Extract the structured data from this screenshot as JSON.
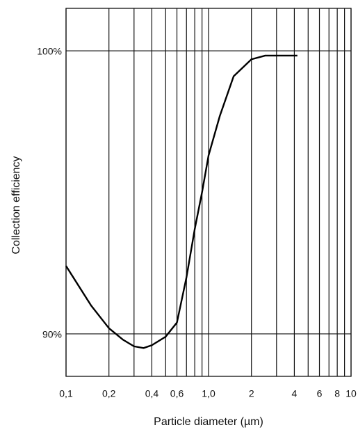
{
  "chart_data": {
    "type": "line",
    "x_label": "Particle diameter (µm)",
    "y_label": "Collection efficiency",
    "x": [
      0.1,
      0.15,
      0.2,
      0.25,
      0.3,
      0.35,
      0.4,
      0.5,
      0.6,
      0.7,
      0.8,
      0.9,
      1.0,
      1.2,
      1.5,
      2,
      2.5,
      3,
      4.2
    ],
    "values": [
      92.4,
      91.0,
      90.2,
      89.8,
      89.56,
      89.5,
      89.6,
      89.9,
      90.4,
      92.0,
      93.7,
      95.0,
      96.3,
      97.7,
      99.1,
      99.7,
      99.83,
      99.83,
      99.83
    ],
    "color": "#000000",
    "x_log": true,
    "xlim": [
      0.1,
      10
    ],
    "ylim": [
      88.5,
      101.5
    ],
    "xticks": [
      {
        "value": 0.1,
        "label": "0,1"
      },
      {
        "value": 0.2,
        "label": "0,2"
      },
      {
        "value": 0.4,
        "label": "0,4"
      },
      {
        "value": 0.6,
        "label": "0,6"
      },
      {
        "value": 1.0,
        "label": "1,0"
      },
      2,
      4,
      6,
      8,
      10
    ],
    "x_minor_ticks": [
      0.3,
      0.5,
      0.7,
      0.8,
      0.9,
      3,
      5,
      7,
      9
    ],
    "yticks": [
      {
        "value": 90,
        "label": "90%"
      },
      {
        "value": 100,
        "label": "100%"
      }
    ],
    "grid": true
  }
}
